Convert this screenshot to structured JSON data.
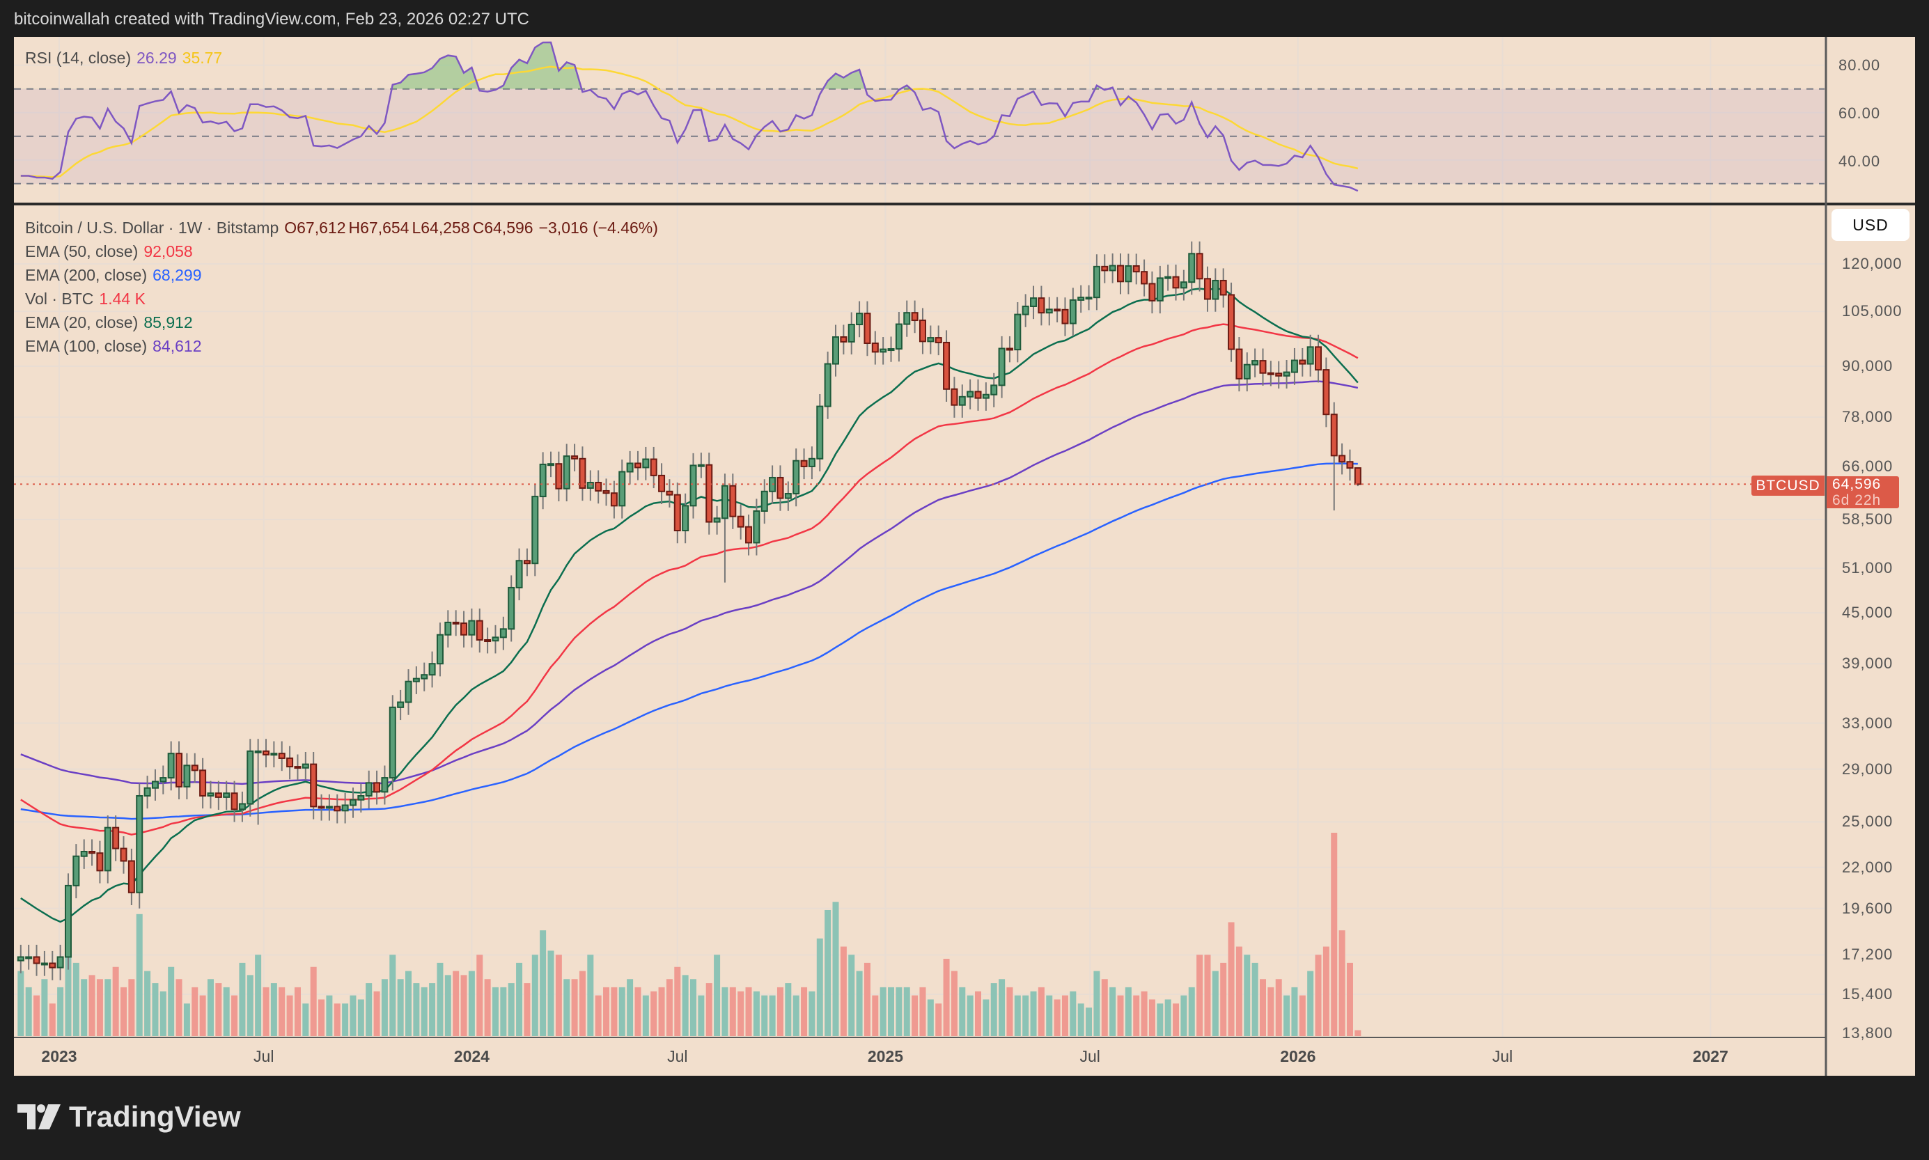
{
  "header": {
    "attribution": "bitcoinwallah created with TradingView.com, Feb 23, 2026 02:27 UTC"
  },
  "rsi_legend": {
    "label": "RSI (14, close)",
    "rsi": "26.29",
    "ma": "35.77"
  },
  "main_legend": {
    "symbol": "Bitcoin / U.S. Dollar · 1W · Bitstamp",
    "open": "O67,612",
    "high": "H67,654",
    "low": "L64,258",
    "close": "C64,596",
    "change": "−3,016 (−4.46%)",
    "ema50_label": "EMA (50, close)",
    "ema50_value": "92,058",
    "ema200_label": "EMA (200, close)",
    "ema200_value": "68,299",
    "vol_label": "Vol · BTC",
    "vol_value": "1.44 K",
    "ema20_label": "EMA (20, close)",
    "ema20_value": "85,912",
    "ema100_label": "EMA (100, close)",
    "ema100_value": "84,612"
  },
  "rsi_axis": [
    "80.00",
    "60.00",
    "40.00"
  ],
  "price_axis": {
    "currency_button": "USD",
    "ticks": [
      "120,000",
      "105,000",
      "90,000",
      "78,000",
      "66,000",
      "58,500",
      "51,000",
      "45,000",
      "39,000",
      "33,000",
      "29,000",
      "25,000",
      "22,000",
      "19,600",
      "17,200",
      "15,400",
      "13,800"
    ]
  },
  "price_label": {
    "symbol": "BTCUSD",
    "price": "64,596",
    "countdown": "6d 22h"
  },
  "time_axis": [
    "2023",
    "Jul",
    "2024",
    "Jul",
    "2025",
    "Jul",
    "2026",
    "Jul",
    "2027"
  ],
  "footer": {
    "logo_text": "TradingView"
  },
  "colors": {
    "up": "#5a9e78",
    "down": "#d9533f",
    "ema20": "#0b6e4f",
    "ema50": "#f23645",
    "ema100": "#6a3fc4",
    "ema200": "#2962ff",
    "rsi": "#7e57c2",
    "rsi_ma": "#fdd835",
    "bg": "#f2dfcd"
  },
  "chart_data": {
    "type": "candlestick",
    "title": "Bitcoin / U.S. Dollar · 1W · Bitstamp",
    "interval": "1W",
    "first_week": "2022-11-28",
    "y_scale": "log",
    "ylim": [
      13800,
      128000
    ],
    "closes_k": [
      17.1,
      17.1,
      16.8,
      16.8,
      16.6,
      17.1,
      20.9,
      22.7,
      23.0,
      22.9,
      21.8,
      24.6,
      23.2,
      22.4,
      20.5,
      26.9,
      27.5,
      28.0,
      28.3,
      30.3,
      27.6,
      29.3,
      28.9,
      26.9,
      27.1,
      26.8,
      27.1,
      25.9,
      26.3,
      30.5,
      30.5,
      30.2,
      30.3,
      29.9,
      29.2,
      29.1,
      29.4,
      26.1,
      26.0,
      26.1,
      25.8,
      26.2,
      26.6,
      26.9,
      27.9,
      27.2,
      28.3,
      34.5,
      35.0,
      37.1,
      37.4,
      37.8,
      39.0,
      42.3,
      43.8,
      43.7,
      42.3,
      44.0,
      41.7,
      41.6,
      42.0,
      43.0,
      48.3,
      52.1,
      51.7,
      62.4,
      68.3,
      68.4,
      63.8,
      69.9,
      69.4,
      63.9,
      64.9,
      63.4,
      63.0,
      60.8,
      66.9,
      68.5,
      67.7,
      69.3,
      66.2,
      63.3,
      62.7,
      56.7,
      60.8,
      68.1,
      68.2,
      58.1,
      58.7,
      64.3,
      59.0,
      57.3,
      54.8,
      59.9,
      63.3,
      65.8,
      62.1,
      62.9,
      69.0,
      67.9,
      69.4,
      80.4,
      90.6,
      97.7,
      96.4,
      101.2,
      104.4,
      96.0,
      93.7,
      94.4,
      94.5,
      101.3,
      104.6,
      102.4,
      96.5,
      97.5,
      96.2,
      84.4,
      80.7,
      82.6,
      83.8,
      82.3,
      83.1,
      85.3,
      94.6,
      94.3,
      104.1,
      106.5,
      109.0,
      104.6,
      105.6,
      105.5,
      101.5,
      108.4,
      109.2,
      109.2,
      119.1,
      117.8,
      119.4,
      114.2,
      119.3,
      117.4,
      113.5,
      108.2,
      115.3,
      115.7,
      112.2,
      114.0,
      123.5,
      115.1,
      108.7,
      114.5,
      110.0,
      94.4,
      86.9,
      90.4,
      91.4,
      88.3,
      88.2,
      87.6,
      88.5,
      91.5,
      90.6,
      95.0,
      89.1,
      78.6,
      70.0,
      68.8,
      67.612,
      64.596
    ],
    "last_candle": {
      "open": 67612,
      "high": 67654,
      "low": 64258,
      "close": 64596
    },
    "low_overrides_k": {
      "15": 19.6,
      "89": 49.0,
      "166": 60.0,
      "30": 24.8
    },
    "volumes_k": [
      16,
      12,
      10,
      14,
      8,
      12,
      20,
      18,
      14,
      15,
      14,
      14,
      17,
      12,
      14,
      30,
      16,
      13,
      11,
      17,
      14,
      8,
      12,
      10,
      14,
      13,
      12,
      10,
      18,
      15,
      20,
      12,
      13,
      12,
      10,
      12,
      8,
      17,
      9,
      10,
      8,
      8,
      10,
      9,
      13,
      11,
      14,
      20,
      14,
      16,
      13,
      12,
      13,
      18,
      15,
      16,
      15,
      16,
      20,
      14,
      12,
      12,
      13,
      18,
      13,
      20,
      26,
      21,
      20,
      14,
      14,
      16,
      20,
      10,
      12,
      12,
      12,
      14,
      12,
      10,
      11,
      12,
      14,
      17,
      15,
      14,
      10,
      13,
      20,
      12,
      12,
      11,
      12,
      11,
      10,
      10,
      12,
      13,
      10,
      12,
      11,
      24,
      31,
      33,
      22,
      20,
      16,
      18,
      10,
      12,
      12,
      12,
      12,
      10,
      12,
      9,
      8,
      19,
      16,
      12,
      10,
      11,
      9,
      13,
      14,
      12,
      10,
      10,
      11,
      12,
      10,
      9,
      10,
      11,
      8,
      7,
      16,
      14,
      12,
      10,
      12,
      10,
      11,
      9,
      8,
      9,
      8,
      10,
      12,
      20,
      20,
      16,
      18,
      28,
      22,
      20,
      18,
      14,
      12,
      14,
      10,
      12,
      10,
      16,
      20,
      22,
      50,
      26,
      18,
      1.44
    ],
    "ema_seeds_k": {
      "ema20": 20.5,
      "ema50": 27.0,
      "ema100": 30.5,
      "ema200": 26.0
    },
    "rsi": {
      "period": 14,
      "ma_period": 14,
      "levels": [
        70,
        50,
        30
      ],
      "ylim": [
        22,
        92
      ]
    }
  }
}
